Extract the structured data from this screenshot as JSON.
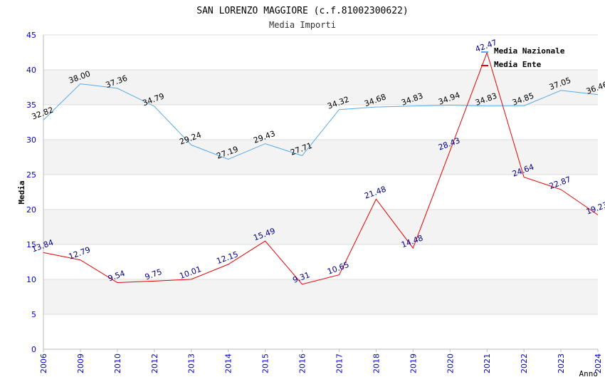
{
  "chart_data": {
    "type": "line",
    "title": "SAN LORENZO MAGGIORE (c.f.81002300622)",
    "subtitle": "Media Importi",
    "xlabel": "Anno",
    "ylabel": "Media",
    "ylim": [
      0,
      45
    ],
    "yticks": [
      0,
      5,
      10,
      15,
      20,
      25,
      30,
      35,
      40,
      45
    ],
    "categories": [
      "2006",
      "2009",
      "2010",
      "2012",
      "2013",
      "2014",
      "2015",
      "2016",
      "2017",
      "2018",
      "2019",
      "2020",
      "2021",
      "2022",
      "2023",
      "2024"
    ],
    "series": [
      {
        "name": "Media Nazionale",
        "color": "#5aa9e6",
        "label_color": "#000000",
        "values": [
          32.82,
          38.0,
          37.36,
          34.79,
          29.24,
          27.19,
          29.43,
          27.71,
          34.32,
          34.68,
          34.83,
          34.94,
          34.83,
          34.85,
          37.05,
          36.46
        ],
        "labels": [
          "32.82",
          "38.00",
          "37.36",
          "34.79",
          "29.24",
          "27.19",
          "29.43",
          "27.71",
          "34.32",
          "34.68",
          "34.83",
          "34.94",
          "34.83",
          "34.85",
          "37.05",
          "36.46"
        ]
      },
      {
        "name": "Media Ente",
        "color": "#e60000",
        "label_color": "#00008b",
        "values": [
          13.84,
          12.79,
          9.54,
          9.75,
          10.01,
          12.15,
          15.49,
          9.31,
          10.65,
          21.48,
          14.48,
          28.43,
          42.47,
          24.64,
          22.87,
          19.23
        ],
        "labels": [
          "13.84",
          "12.79",
          "9.54",
          "9.75",
          "10.01",
          "12.15",
          "15.49",
          "9.31",
          "10.65",
          "21.48",
          "14.48",
          "28.43",
          "42.47",
          "24.64",
          "22.87",
          "19.23"
        ]
      }
    ],
    "legend_position": "top-right",
    "grid": true,
    "colors": {
      "band": "#f3f3f3",
      "gridline": "#dddddd",
      "axis_tick_text": "#0000cc"
    }
  }
}
